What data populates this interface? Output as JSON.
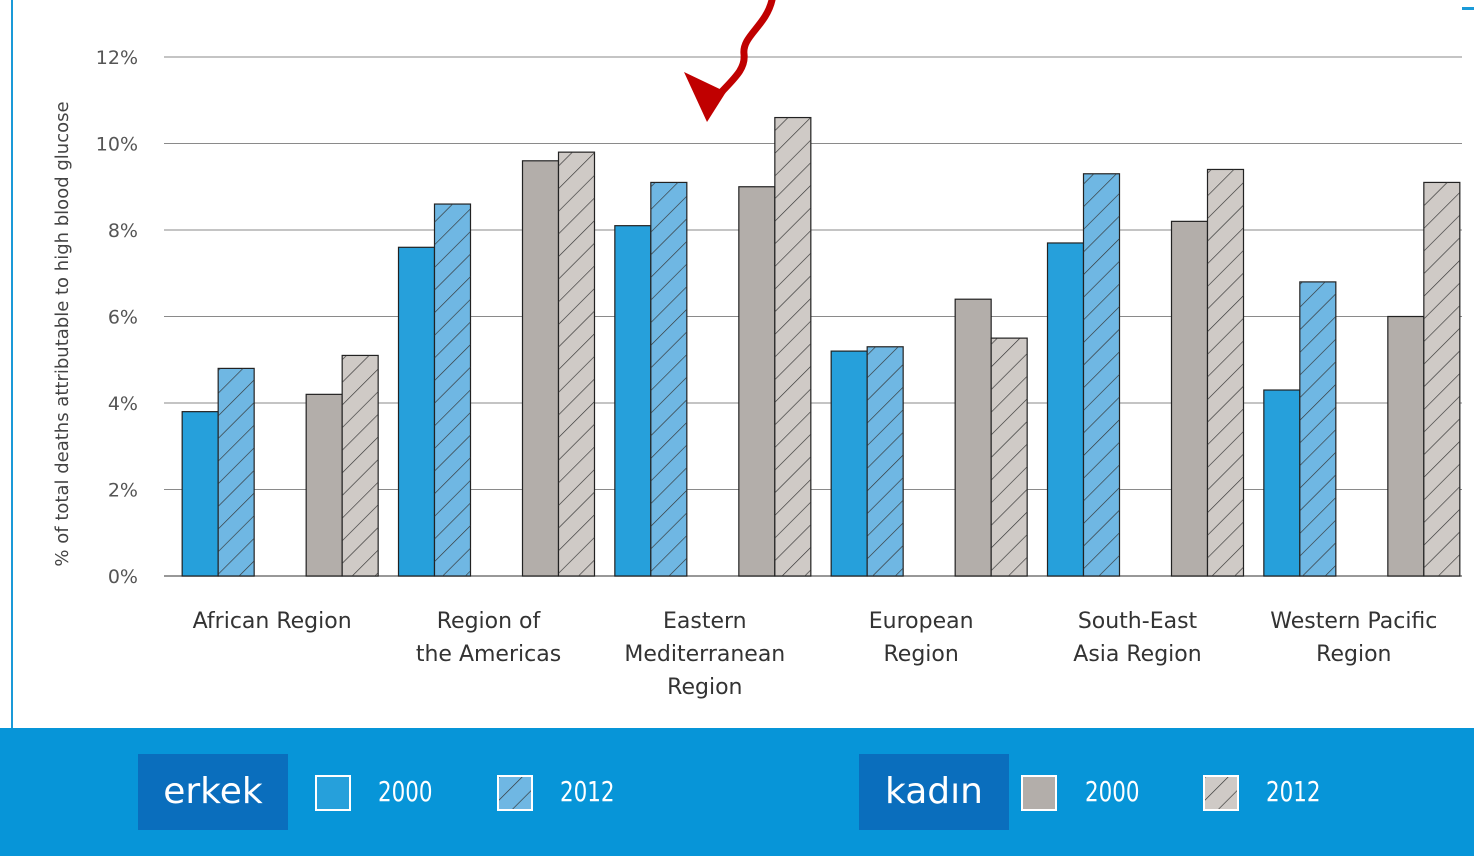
{
  "chart_data": {
    "type": "bar",
    "ylabel": "% of total deaths attributable to high blood glucose",
    "ylim": [
      0,
      12
    ],
    "yticks": [
      "0%",
      "2%",
      "4%",
      "6%",
      "8%",
      "10%",
      "12%"
    ],
    "grid": true,
    "categories": [
      [
        "African Region"
      ],
      [
        "Region of",
        "the Americas"
      ],
      [
        "Eastern",
        "Mediterranean",
        "Region"
      ],
      [
        "European",
        "Region"
      ],
      [
        "South-East",
        "Asia Region"
      ],
      [
        "Western Pacific",
        "Region"
      ]
    ],
    "series": [
      {
        "group": "erkek",
        "year": "2000",
        "color": "#26a0db",
        "hatched": false,
        "values": [
          3.8,
          7.6,
          8.1,
          5.2,
          7.7,
          4.3
        ]
      },
      {
        "group": "erkek",
        "year": "2012",
        "color": "#6fb7e3",
        "hatched": true,
        "values": [
          4.8,
          8.6,
          9.1,
          5.3,
          9.3,
          6.8
        ]
      },
      {
        "group": "kadın",
        "year": "2000",
        "color": "#b3aeaa",
        "hatched": false,
        "values": [
          4.2,
          9.6,
          9.0,
          6.4,
          8.2,
          6.0
        ]
      },
      {
        "group": "kadın",
        "year": "2012",
        "color": "#cfcac6",
        "hatched": true,
        "values": [
          5.1,
          9.8,
          10.6,
          5.5,
          9.4,
          9.1
        ]
      }
    ],
    "annotation": {
      "type": "arrow",
      "points_to": "Eastern Mediterranean Region",
      "color": "#c00000"
    }
  },
  "legend": {
    "groups": [
      {
        "label": "erkek",
        "items": [
          {
            "year": "2000",
            "color": "#26a0db",
            "hatched": false
          },
          {
            "year": "2012",
            "color": "#6fb7e3",
            "hatched": true
          }
        ]
      },
      {
        "label": "kadın",
        "items": [
          {
            "year": "2000",
            "color": "#b3aeaa",
            "hatched": false
          },
          {
            "year": "2012",
            "color": "#cfcac6",
            "hatched": true
          }
        ]
      }
    ]
  },
  "accent_color": "#0795d8"
}
